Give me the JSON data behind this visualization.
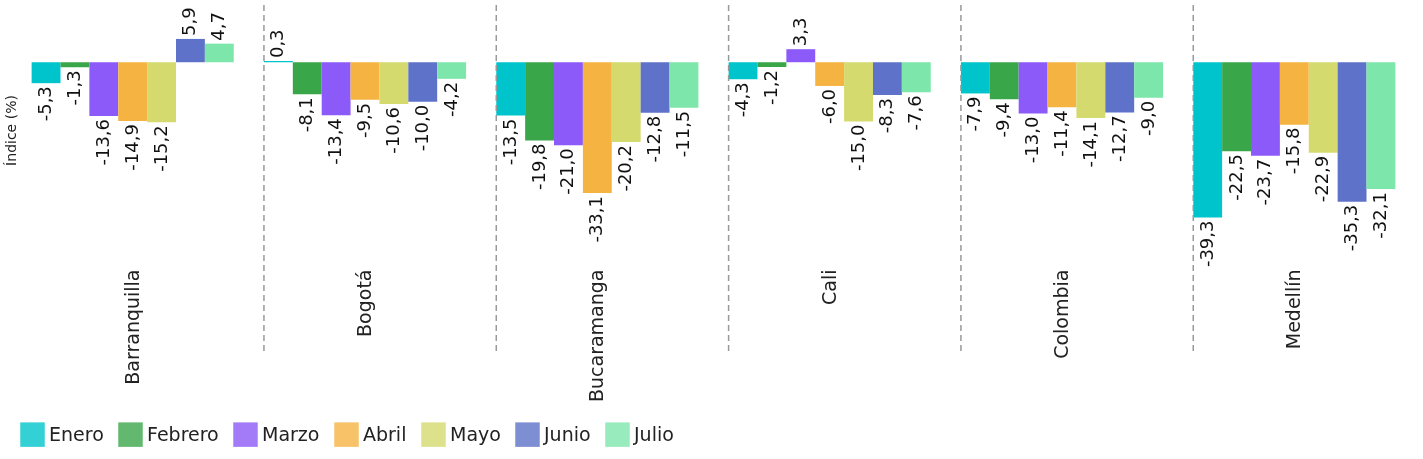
{
  "chart_data": {
    "type": "bar",
    "ylabel": "Índice (%)",
    "categories": [
      "Barranquilla",
      "Bogotá",
      "Bucaramanga",
      "Cali",
      "Colombia",
      "Medellín"
    ],
    "series": [
      {
        "name": "Enero",
        "color": "#00c4cc",
        "values": [
          -5.3,
          0.3,
          -13.5,
          -4.3,
          -7.9,
          -39.3
        ],
        "value_labels": [
          "-5,3",
          "0,3",
          "-13,5",
          "-4,3",
          "-7,9",
          "-39,3"
        ]
      },
      {
        "name": "Febrero",
        "color": "#3aa64a",
        "values": [
          -1.3,
          -8.1,
          -19.8,
          -1.2,
          -9.4,
          -22.5
        ],
        "value_labels": [
          "-1,3",
          "-8,1",
          "-19,8",
          "-1,2",
          "-9,4",
          "-22,5"
        ]
      },
      {
        "name": "Marzo",
        "color": "#8c5af8",
        "values": [
          -13.6,
          -13.4,
          -21.0,
          3.3,
          -13.0,
          -23.7
        ],
        "value_labels": [
          "-13,6",
          "-13,4",
          "-21,0",
          "3,3",
          "-13,0",
          "-23,7"
        ]
      },
      {
        "name": "Abril",
        "color": "#f5b342",
        "values": [
          -14.9,
          -9.5,
          -33.1,
          -6.0,
          -11.4,
          -15.8
        ],
        "value_labels": [
          "-14,9",
          "-9,5",
          "-33,1",
          "-6,0",
          "-11,4",
          "-15,8"
        ]
      },
      {
        "name": "Mayo",
        "color": "#d5da6e",
        "values": [
          -15.2,
          -10.6,
          -20.2,
          -15.0,
          -14.1,
          -22.9
        ],
        "value_labels": [
          "-15,2",
          "-10,6",
          "-20,2",
          "-15,0",
          "-14,1",
          "-22,9"
        ]
      },
      {
        "name": "Junio",
        "color": "#5d72c8",
        "values": [
          5.9,
          -10.0,
          -12.8,
          -8.3,
          -12.7,
          -35.3
        ],
        "value_labels": [
          "5,9",
          "-10,0",
          "-12,8",
          "-8,3",
          "-12,7",
          "-35,3"
        ]
      },
      {
        "name": "Julio",
        "color": "#7de6ab",
        "values": [
          4.7,
          -4.2,
          -11.5,
          -7.6,
          -9.0,
          -32.1
        ],
        "value_labels": [
          "4,7",
          "-4,2",
          "-11,5",
          "-7,6",
          "-9,0",
          "-32,1"
        ]
      }
    ],
    "grid": "x",
    "legend": "bottom"
  }
}
